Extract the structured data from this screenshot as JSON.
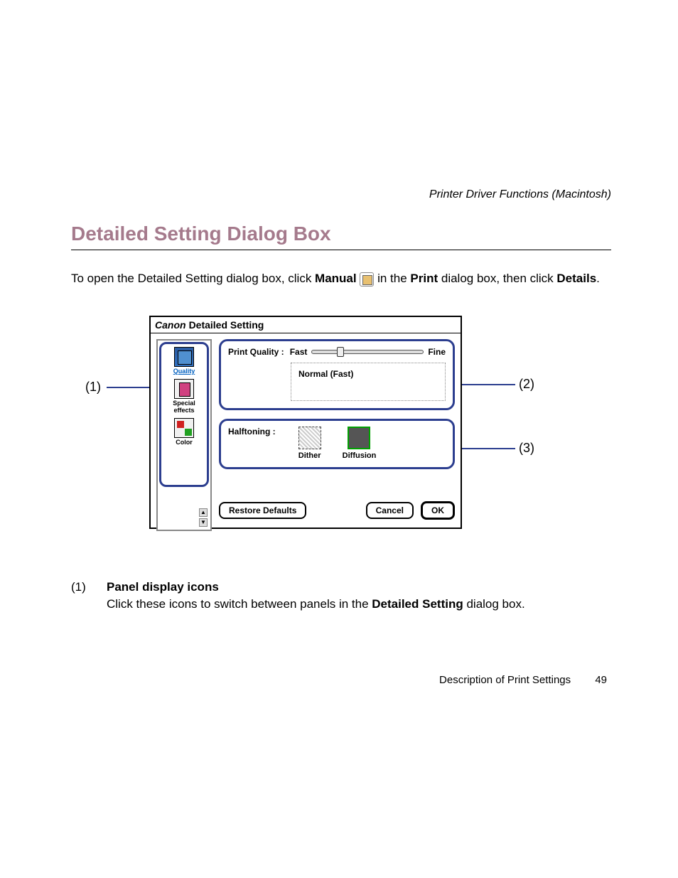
{
  "header": "Printer Driver Functions (Macintosh)",
  "title": "Detailed Setting Dialog Box",
  "intro": {
    "p1a": "To open the Detailed Setting dialog box, click ",
    "manual": "Manual",
    "p1b": " in the ",
    "print": "Print",
    "p1c": " dialog box, then click ",
    "details": "Details",
    "p1d": "."
  },
  "callouts": {
    "c1": "(1)",
    "c2": "(2)",
    "c3": "(3)"
  },
  "dialog": {
    "brand": "Canon",
    "title": "Detailed Setting",
    "sidebar": {
      "items": [
        {
          "label": "Quality",
          "cls": "icon-quality",
          "underline": true
        },
        {
          "label": "Special effects",
          "cls": "icon-special",
          "underline": false
        },
        {
          "label": "Color",
          "cls": "icon-color",
          "underline": false
        }
      ]
    },
    "quality": {
      "label": "Print Quality :",
      "fast": "Fast",
      "fine": "Fine",
      "readout": "Normal (Fast)"
    },
    "halftone": {
      "label": "Halftoning :",
      "opts": [
        {
          "label": "Dither",
          "selected": false
        },
        {
          "label": "Diffusion",
          "selected": true
        }
      ]
    },
    "buttons": {
      "restore": "Restore Defaults",
      "cancel": "Cancel",
      "ok": "OK"
    }
  },
  "desc": {
    "num": "(1)",
    "heading": "Panel display icons",
    "body1": "Click these icons to switch between panels in the ",
    "bold": "Detailed Setting",
    "body2": " dialog box."
  },
  "footer": {
    "text": "Description of Print Settings",
    "page": "49"
  }
}
